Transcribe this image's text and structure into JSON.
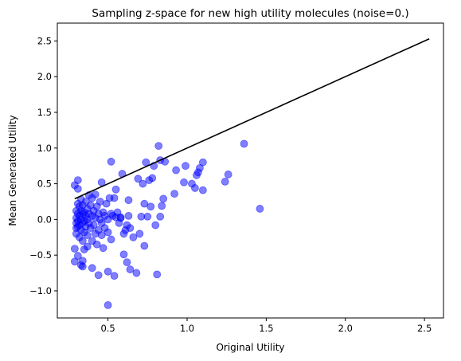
{
  "chart_data": {
    "type": "scatter",
    "title": "Sampling z-space for new high utility molecules (noise=0.)",
    "xlabel": "Original Utility",
    "ylabel": "Mean Generated Utility",
    "xlim": [
      0.18,
      2.62
    ],
    "ylim": [
      -1.38,
      2.75
    ],
    "x_ticks": [
      0.5,
      1.0,
      1.5,
      2.0,
      2.5
    ],
    "x_tick_labels": [
      "0.5",
      "1.0",
      "1.5",
      "2.0",
      "2.5"
    ],
    "y_ticks": [
      -1.0,
      -0.5,
      0.0,
      0.5,
      1.0,
      1.5,
      2.0,
      2.5
    ],
    "y_tick_labels": [
      "−1.0",
      "−0.5",
      "0.0",
      "0.5",
      "1.0",
      "1.5",
      "2.0",
      "2.5"
    ],
    "grid": false,
    "colors": {
      "points": "#0000ff",
      "line": "#000000",
      "axes": "#000000"
    },
    "series": [
      {
        "kind": "scatter",
        "points": [
          [
            0.29,
            0.48
          ],
          [
            0.31,
            0.55
          ],
          [
            0.31,
            0.43
          ],
          [
            0.29,
            -0.41
          ],
          [
            0.29,
            -0.59
          ],
          [
            0.31,
            -0.51
          ],
          [
            0.33,
            -0.64
          ],
          [
            0.34,
            -0.66
          ],
          [
            0.34,
            -0.58
          ],
          [
            0.35,
            -0.42
          ],
          [
            0.37,
            -0.38
          ],
          [
            0.3,
            0.12
          ],
          [
            0.3,
            0.02
          ],
          [
            0.3,
            -0.05
          ],
          [
            0.3,
            -0.12
          ],
          [
            0.3,
            -0.2
          ],
          [
            0.31,
            0.22
          ],
          [
            0.31,
            0.08
          ],
          [
            0.31,
            -0.02
          ],
          [
            0.31,
            -0.1
          ],
          [
            0.32,
            0.18
          ],
          [
            0.32,
            0.05
          ],
          [
            0.32,
            -0.08
          ],
          [
            0.32,
            -0.25
          ],
          [
            0.33,
            0.28
          ],
          [
            0.33,
            0.12
          ],
          [
            0.33,
            0.0
          ],
          [
            0.33,
            -0.15
          ],
          [
            0.34,
            0.2
          ],
          [
            0.34,
            0.08
          ],
          [
            0.34,
            -0.05
          ],
          [
            0.34,
            -0.3
          ],
          [
            0.35,
            0.1
          ],
          [
            0.35,
            -0.02
          ],
          [
            0.35,
            -0.18
          ],
          [
            0.36,
            0.25
          ],
          [
            0.36,
            0.05
          ],
          [
            0.36,
            -0.1
          ],
          [
            0.37,
            0.15
          ],
          [
            0.37,
            0.0
          ],
          [
            0.37,
            -0.22
          ],
          [
            0.38,
            0.34
          ],
          [
            0.38,
            0.08
          ],
          [
            0.38,
            -0.05
          ],
          [
            0.39,
            0.2
          ],
          [
            0.39,
            -0.12
          ],
          [
            0.4,
            0.3
          ],
          [
            0.4,
            0.05
          ],
          [
            0.4,
            -0.3
          ],
          [
            0.41,
            0.12
          ],
          [
            0.41,
            -0.08
          ],
          [
            0.42,
            0.35
          ],
          [
            0.42,
            0.02
          ],
          [
            0.42,
            -0.2
          ],
          [
            0.43,
            0.18
          ],
          [
            0.43,
            -0.35
          ],
          [
            0.44,
            0.08
          ],
          [
            0.44,
            -0.15
          ],
          [
            0.45,
            0.25
          ],
          [
            0.45,
            0.0
          ],
          [
            0.46,
            -0.05
          ],
          [
            0.46,
            -0.22
          ],
          [
            0.47,
            0.1
          ],
          [
            0.47,
            -0.4
          ],
          [
            0.48,
            0.05
          ],
          [
            0.48,
            -0.12
          ],
          [
            0.49,
            0.22
          ],
          [
            0.5,
            -0.18
          ],
          [
            0.5,
            0.0
          ],
          [
            0.51,
            0.3
          ],
          [
            0.52,
            0.08
          ],
          [
            0.52,
            -0.28
          ],
          [
            0.53,
            0.05
          ],
          [
            0.55,
            0.42
          ],
          [
            0.55,
            0.03
          ],
          [
            0.57,
            -0.05
          ],
          [
            0.58,
            0.03
          ],
          [
            0.6,
            -0.2
          ],
          [
            0.61,
            -0.15
          ],
          [
            0.62,
            -0.08
          ],
          [
            0.63,
            0.05
          ],
          [
            0.64,
            -0.12
          ],
          [
            0.46,
            0.52
          ],
          [
            0.52,
            0.81
          ],
          [
            0.54,
            0.3
          ],
          [
            0.56,
            0.1
          ],
          [
            0.58,
            0.02
          ],
          [
            0.59,
            0.64
          ],
          [
            0.6,
            -0.49
          ],
          [
            0.62,
            -0.6
          ],
          [
            0.63,
            0.27
          ],
          [
            0.64,
            -0.7
          ],
          [
            0.66,
            -0.25
          ],
          [
            0.68,
            -0.75
          ],
          [
            0.69,
            0.57
          ],
          [
            0.7,
            -0.2
          ],
          [
            0.71,
            0.04
          ],
          [
            0.72,
            0.5
          ],
          [
            0.73,
            0.22
          ],
          [
            0.73,
            -0.37
          ],
          [
            0.74,
            0.8
          ],
          [
            0.75,
            0.04
          ],
          [
            0.76,
            0.55
          ],
          [
            0.77,
            0.18
          ],
          [
            0.78,
            0.58
          ],
          [
            0.79,
            0.75
          ],
          [
            0.8,
            -0.08
          ],
          [
            0.81,
            -0.77
          ],
          [
            0.82,
            1.03
          ],
          [
            0.83,
            0.04
          ],
          [
            0.83,
            0.83
          ],
          [
            0.84,
            0.19
          ],
          [
            0.85,
            0.29
          ],
          [
            0.86,
            0.81
          ],
          [
            0.92,
            0.36
          ],
          [
            0.93,
            0.69
          ],
          [
            0.98,
            0.52
          ],
          [
            0.99,
            0.75
          ],
          [
            1.03,
            0.5
          ],
          [
            1.05,
            0.44
          ],
          [
            1.06,
            0.62
          ],
          [
            1.07,
            0.66
          ],
          [
            1.08,
            0.72
          ],
          [
            1.1,
            0.41
          ],
          [
            1.1,
            0.8
          ],
          [
            1.24,
            0.53
          ],
          [
            1.26,
            0.63
          ],
          [
            1.36,
            1.06
          ],
          [
            1.46,
            0.15
          ],
          [
            0.4,
            -0.68
          ],
          [
            0.44,
            -0.78
          ],
          [
            0.5,
            -0.73
          ],
          [
            0.54,
            -0.79
          ],
          [
            0.5,
            -1.2
          ]
        ]
      },
      {
        "kind": "line",
        "points": [
          [
            0.29,
            0.29
          ],
          [
            2.53,
            2.53
          ]
        ]
      }
    ]
  }
}
